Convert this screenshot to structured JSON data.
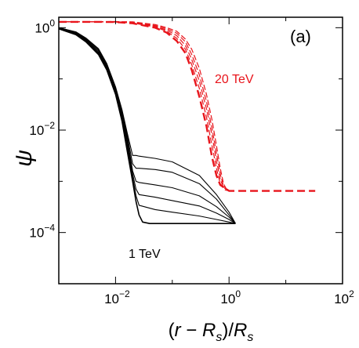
{
  "chart_data": {
    "type": "line",
    "panel_label": "(a)",
    "xlabel": "(r − R_s)/R_s",
    "ylabel": "ψ",
    "xscale": "log",
    "yscale": "log",
    "xlim": [
      0.001,
      100
    ],
    "ylim": [
      1e-05,
      1.6
    ],
    "x_ticks": [
      {
        "value": 0.01,
        "base": "10",
        "exp": "−2"
      },
      {
        "value": 1,
        "base": "10",
        "exp": "0"
      },
      {
        "value": 100,
        "base": "10",
        "exp": "2"
      }
    ],
    "y_ticks": [
      {
        "value": 0.0001,
        "base": "10",
        "exp": "−4"
      },
      {
        "value": 0.01,
        "base": "10",
        "exp": "−2"
      },
      {
        "value": 1,
        "base": "10",
        "exp": "0"
      }
    ],
    "annotations": [
      {
        "text": "20 TeV",
        "color": "#e8141b"
      },
      {
        "text": "1 TeV",
        "color": "#000000"
      }
    ],
    "colors": {
      "group_20TeV": "#e8141b",
      "group_1TeV": "#000000",
      "axes": "#000000"
    },
    "series": [
      {
        "group": "20 TeV",
        "style": "dashed",
        "points": [
          [
            0.001,
            1.3
          ],
          [
            0.002,
            1.3
          ],
          [
            0.004,
            1.3
          ],
          [
            0.01,
            1.29
          ],
          [
            0.02,
            1.22
          ],
          [
            0.05,
            1.0
          ],
          [
            0.08,
            0.8
          ],
          [
            0.12,
            0.55
          ],
          [
            0.17,
            0.32
          ],
          [
            0.22,
            0.15
          ],
          [
            0.3,
            0.045
          ],
          [
            0.4,
            0.012
          ],
          [
            0.5,
            0.003
          ],
          [
            0.6,
            0.0013
          ],
          [
            0.7,
            0.00085
          ],
          [
            1,
            0.00065
          ],
          [
            10,
            0.00065
          ],
          [
            33,
            0.00065
          ]
        ]
      },
      {
        "group": "20 TeV",
        "style": "dashed",
        "points": [
          [
            0.001,
            1.3
          ],
          [
            0.004,
            1.3
          ],
          [
            0.01,
            1.29
          ],
          [
            0.02,
            1.24
          ],
          [
            0.05,
            1.03
          ],
          [
            0.08,
            0.85
          ],
          [
            0.12,
            0.62
          ],
          [
            0.17,
            0.38
          ],
          [
            0.22,
            0.19
          ],
          [
            0.3,
            0.065
          ],
          [
            0.4,
            0.018
          ],
          [
            0.5,
            0.005
          ],
          [
            0.6,
            0.0018
          ],
          [
            0.7,
            0.0009
          ],
          [
            0.85,
            0.00068
          ],
          [
            1,
            0.00065
          ]
        ]
      },
      {
        "group": "20 TeV",
        "style": "dashed",
        "points": [
          [
            0.001,
            1.3
          ],
          [
            0.004,
            1.3
          ],
          [
            0.01,
            1.3
          ],
          [
            0.02,
            1.26
          ],
          [
            0.05,
            1.06
          ],
          [
            0.08,
            0.9
          ],
          [
            0.12,
            0.7
          ],
          [
            0.17,
            0.45
          ],
          [
            0.22,
            0.24
          ],
          [
            0.3,
            0.09
          ],
          [
            0.4,
            0.026
          ],
          [
            0.5,
            0.008
          ],
          [
            0.6,
            0.0025
          ],
          [
            0.7,
            0.0011
          ],
          [
            0.8,
            0.00075
          ],
          [
            1,
            0.00065
          ]
        ]
      },
      {
        "group": "20 TeV",
        "style": "dashed",
        "points": [
          [
            0.001,
            1.3
          ],
          [
            0.004,
            1.3
          ],
          [
            0.01,
            1.3
          ],
          [
            0.02,
            1.28
          ],
          [
            0.05,
            1.1
          ],
          [
            0.08,
            0.95
          ],
          [
            0.12,
            0.78
          ],
          [
            0.17,
            0.53
          ],
          [
            0.22,
            0.3
          ],
          [
            0.3,
            0.12
          ],
          [
            0.4,
            0.036
          ],
          [
            0.5,
            0.011
          ],
          [
            0.6,
            0.0035
          ],
          [
            0.7,
            0.0014
          ],
          [
            0.8,
            0.0008
          ],
          [
            1,
            0.00065
          ]
        ]
      },
      {
        "group": "20 TeV",
        "style": "dashed",
        "points": [
          [
            0.001,
            1.3
          ],
          [
            0.004,
            1.3
          ],
          [
            0.008,
            1.32
          ],
          [
            0.02,
            1.3
          ],
          [
            0.05,
            1.15
          ],
          [
            0.08,
            1.0
          ],
          [
            0.12,
            0.85
          ],
          [
            0.17,
            0.6
          ],
          [
            0.22,
            0.38
          ],
          [
            0.3,
            0.16
          ],
          [
            0.4,
            0.05
          ],
          [
            0.5,
            0.016
          ],
          [
            0.6,
            0.005
          ],
          [
            0.7,
            0.0018
          ],
          [
            0.8,
            0.0009
          ],
          [
            0.9,
            0.0007
          ],
          [
            1,
            0.00065
          ]
        ]
      },
      {
        "group": "1 TeV",
        "style": "solid",
        "points": [
          [
            0.001,
            0.95
          ],
          [
            0.002,
            0.73
          ],
          [
            0.003,
            0.53
          ],
          [
            0.005,
            0.3
          ],
          [
            0.007,
            0.15
          ],
          [
            0.01,
            0.05
          ],
          [
            0.013,
            0.015
          ],
          [
            0.016,
            0.004
          ],
          [
            0.02,
            0.001
          ],
          [
            0.023,
            0.0004
          ],
          [
            0.026,
            0.00022
          ],
          [
            0.03,
            0.00016
          ],
          [
            0.04,
            0.00015
          ],
          [
            0.1,
            0.00015
          ],
          [
            0.5,
            0.00015
          ],
          [
            1.3,
            0.00015
          ]
        ]
      },
      {
        "group": "1 TeV",
        "style": "solid",
        "points": [
          [
            0.001,
            0.97
          ],
          [
            0.002,
            0.75
          ],
          [
            0.003,
            0.55
          ],
          [
            0.005,
            0.32
          ],
          [
            0.007,
            0.16
          ],
          [
            0.01,
            0.055
          ],
          [
            0.013,
            0.017
          ],
          [
            0.016,
            0.005
          ],
          [
            0.02,
            0.0012
          ],
          [
            0.023,
            0.00052
          ],
          [
            0.026,
            0.00034
          ],
          [
            0.05,
            0.00028
          ],
          [
            0.1,
            0.00025
          ],
          [
            0.3,
            0.00021
          ],
          [
            0.6,
            0.00018
          ],
          [
            1,
            0.00016
          ],
          [
            1.3,
            0.00015
          ]
        ]
      },
      {
        "group": "1 TeV",
        "style": "solid",
        "points": [
          [
            0.001,
            0.98
          ],
          [
            0.002,
            0.77
          ],
          [
            0.003,
            0.57
          ],
          [
            0.005,
            0.33
          ],
          [
            0.007,
            0.17
          ],
          [
            0.01,
            0.058
          ],
          [
            0.013,
            0.019
          ],
          [
            0.016,
            0.006
          ],
          [
            0.02,
            0.0014
          ],
          [
            0.023,
            0.0007
          ],
          [
            0.026,
            0.00055
          ],
          [
            0.05,
            0.00049
          ],
          [
            0.1,
            0.00042
          ],
          [
            0.3,
            0.00033
          ],
          [
            0.6,
            0.00024
          ],
          [
            1,
            0.00018
          ],
          [
            1.3,
            0.00015
          ]
        ]
      },
      {
        "group": "1 TeV",
        "style": "solid",
        "points": [
          [
            0.001,
            0.99
          ],
          [
            0.002,
            0.79
          ],
          [
            0.003,
            0.59
          ],
          [
            0.005,
            0.35
          ],
          [
            0.007,
            0.18
          ],
          [
            0.01,
            0.062
          ],
          [
            0.013,
            0.021
          ],
          [
            0.016,
            0.007
          ],
          [
            0.02,
            0.0016
          ],
          [
            0.023,
            0.001
          ],
          [
            0.026,
            0.00095
          ],
          [
            0.05,
            0.00085
          ],
          [
            0.1,
            0.00075
          ],
          [
            0.3,
            0.00052
          ],
          [
            0.6,
            0.00032
          ],
          [
            1,
            0.0002
          ],
          [
            1.3,
            0.00015
          ]
        ]
      },
      {
        "group": "1 TeV",
        "style": "solid",
        "points": [
          [
            0.001,
            1.0
          ],
          [
            0.002,
            0.81
          ],
          [
            0.003,
            0.61
          ],
          [
            0.005,
            0.37
          ],
          [
            0.007,
            0.19
          ],
          [
            0.01,
            0.066
          ],
          [
            0.013,
            0.023
          ],
          [
            0.016,
            0.008
          ],
          [
            0.02,
            0.0022
          ],
          [
            0.023,
            0.0018
          ],
          [
            0.026,
            0.0018
          ],
          [
            0.05,
            0.0017
          ],
          [
            0.1,
            0.0015
          ],
          [
            0.3,
            0.0009
          ],
          [
            0.6,
            0.00045
          ],
          [
            1,
            0.00022
          ],
          [
            1.3,
            0.00015
          ]
        ]
      },
      {
        "group": "1 TeV",
        "style": "solid",
        "points": [
          [
            0.001,
            1.0
          ],
          [
            0.002,
            0.83
          ],
          [
            0.003,
            0.63
          ],
          [
            0.005,
            0.39
          ],
          [
            0.007,
            0.2
          ],
          [
            0.01,
            0.07
          ],
          [
            0.013,
            0.025
          ],
          [
            0.016,
            0.009
          ],
          [
            0.02,
            0.0032
          ],
          [
            0.023,
            0.0032
          ],
          [
            0.026,
            0.0031
          ],
          [
            0.05,
            0.0028
          ],
          [
            0.1,
            0.0024
          ],
          [
            0.3,
            0.0013
          ],
          [
            0.6,
            0.00055
          ],
          [
            1,
            0.00025
          ],
          [
            1.3,
            0.00015
          ]
        ]
      }
    ]
  }
}
